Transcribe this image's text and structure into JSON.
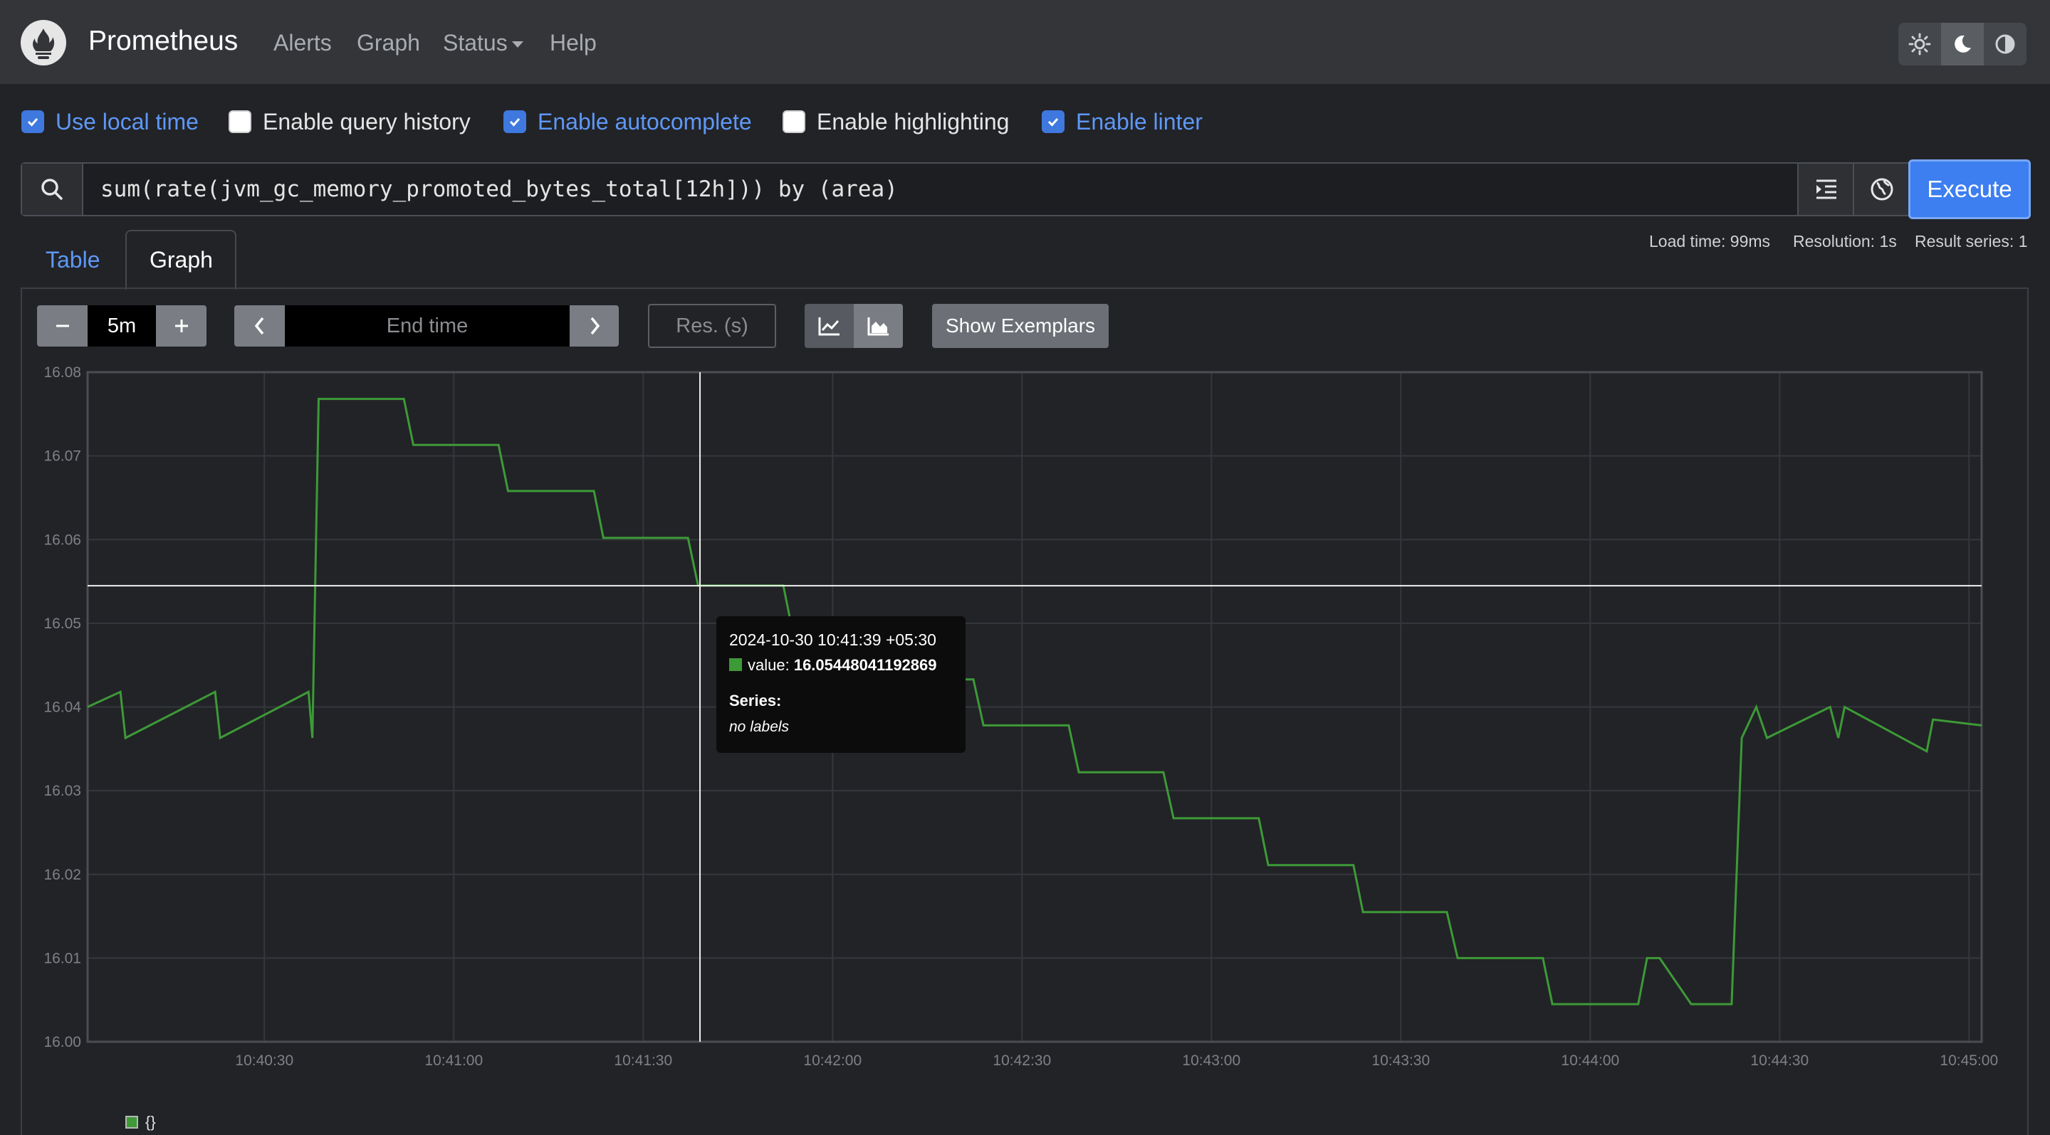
{
  "nav": {
    "brand": "Prometheus",
    "links": [
      "Alerts",
      "Graph",
      "Status",
      "Help"
    ]
  },
  "options": [
    {
      "label": "Use local time",
      "checked": true
    },
    {
      "label": "Enable query history",
      "checked": false
    },
    {
      "label": "Enable autocomplete",
      "checked": true
    },
    {
      "label": "Enable highlighting",
      "checked": false
    },
    {
      "label": "Enable linter",
      "checked": true
    }
  ],
  "query": {
    "expression": "sum(rate(jvm_gc_memory_promoted_bytes_total[12h])) by (area)",
    "execute_label": "Execute"
  },
  "tabs": {
    "table": "Table",
    "graph": "Graph"
  },
  "stats": {
    "load_time": "Load time: 99ms",
    "resolution": "Resolution: 1s",
    "result_series": "Result series: 1"
  },
  "controls": {
    "range": "5m",
    "end_time_placeholder": "End time",
    "resolution_placeholder": "Res. (s)",
    "exemplars_label": "Show Exemplars"
  },
  "tooltip": {
    "timestamp": "2024-10-30 10:41:39 +05:30",
    "value_label": "value: ",
    "value": "16.05448041192869",
    "series_heading": "Series:",
    "labels": "no labels"
  },
  "legend": {
    "label": "{}"
  },
  "colors": {
    "series": "#3d9a37",
    "accent": "#3d7ef0"
  },
  "chart_data": {
    "type": "line",
    "ylim": [
      16.0,
      16.08
    ],
    "yticks": [
      "16.00",
      "16.01",
      "16.02",
      "16.03",
      "16.04",
      "16.05",
      "16.06",
      "16.07",
      "16.08"
    ],
    "xticks": [
      "10:40:30",
      "10:41:00",
      "10:41:30",
      "10:42:00",
      "10:42:30",
      "10:43:00",
      "10:43:30",
      "10:44:00",
      "10:44:30",
      "10:45:00"
    ],
    "xlim_seconds_after_10_40": [
      2,
      302
    ],
    "grid": true,
    "series": [
      {
        "x": [
          2,
          7.2,
          8,
          22.2,
          23,
          37,
          37.6,
          38.6,
          39.6,
          52.1,
          53.6,
          67.1,
          68.6,
          82.2,
          83.7,
          97.1,
          98.7,
          112.2,
          113.7,
          127.4,
          128.9,
          142.3,
          143.9,
          157.4,
          159,
          172.4,
          174,
          187.5,
          189,
          202.5,
          204,
          217.3,
          219,
          232.5,
          234,
          247.6,
          249,
          251,
          256,
          262.4,
          264,
          266.3,
          268,
          278,
          279.3,
          280.3,
          293.3,
          294.3,
          302
        ],
        "y": [
          16.04,
          16.0418,
          16.0363,
          16.0418,
          16.0363,
          16.0418,
          16.0363,
          16.0768,
          16.0768,
          16.0768,
          16.0713,
          16.0713,
          16.0658,
          16.0658,
          16.0602,
          16.0602,
          16.0545,
          16.0545,
          16.0489,
          16.0489,
          16.0433,
          16.0433,
          16.0378,
          16.0378,
          16.0322,
          16.0322,
          16.0267,
          16.0267,
          16.0211,
          16.0211,
          16.0155,
          16.0155,
          16.01,
          16.01,
          16.0045,
          16.0045,
          16.01,
          16.01,
          16.0045,
          16.0045,
          16.0363,
          16.04,
          16.0363,
          16.04,
          16.0363,
          16.04,
          16.0347,
          16.0385,
          16.0378
        ]
      }
    ],
    "hover": {
      "x": 99,
      "y": 16.05448041192869
    }
  }
}
